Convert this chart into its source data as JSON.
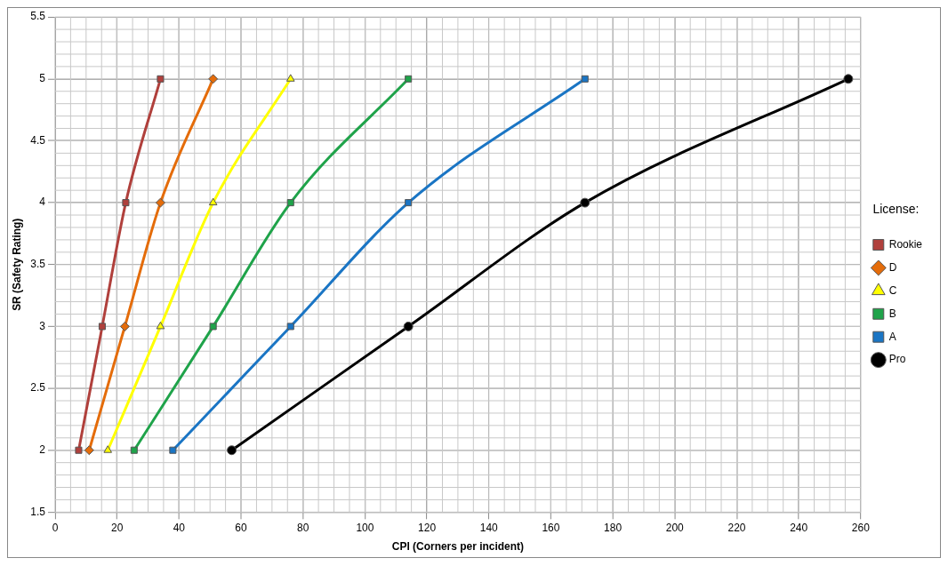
{
  "chart_data": {
    "type": "line",
    "xlabel": "CPI (Corners per incident)",
    "ylabel": "SR (Safety Rating)",
    "legend_title": "License:",
    "legend": "right",
    "grid": true,
    "line_style": "solid",
    "xlim": [
      0,
      260
    ],
    "xticks": [
      0,
      20,
      40,
      60,
      80,
      100,
      120,
      140,
      160,
      180,
      200,
      220,
      240,
      260
    ],
    "ylim": [
      1.5,
      5.5
    ],
    "yticks": [
      1.5,
      2,
      2.5,
      3,
      3.5,
      4,
      4.5,
      5,
      5.5
    ],
    "series": [
      {
        "name": "Rookie",
        "color": "#b0403c",
        "marker": "square",
        "x": [
          7.6,
          15.2,
          22.8,
          34
        ],
        "values": [
          2,
          3,
          4,
          5
        ]
      },
      {
        "name": "D",
        "color": "#e46c0a",
        "marker": "diamond",
        "x": [
          11,
          22.5,
          34,
          51
        ],
        "values": [
          2,
          3,
          4,
          5
        ]
      },
      {
        "name": "C",
        "color": "#ffff00",
        "marker": "triangle",
        "x": [
          17,
          34,
          51,
          76
        ],
        "values": [
          2,
          3,
          4,
          5
        ]
      },
      {
        "name": "B",
        "color": "#1fa34a",
        "marker": "square",
        "x": [
          25.5,
          51,
          76,
          114
        ],
        "values": [
          2,
          3,
          4,
          5
        ]
      },
      {
        "name": "A",
        "color": "#1a75c4",
        "marker": "square",
        "x": [
          38,
          76,
          114,
          171
        ],
        "values": [
          2,
          3,
          4,
          5
        ]
      },
      {
        "name": "Pro",
        "color": "#000000",
        "marker": "circle",
        "x": [
          57,
          114,
          171,
          256
        ],
        "values": [
          2,
          3,
          4,
          5
        ]
      }
    ]
  }
}
